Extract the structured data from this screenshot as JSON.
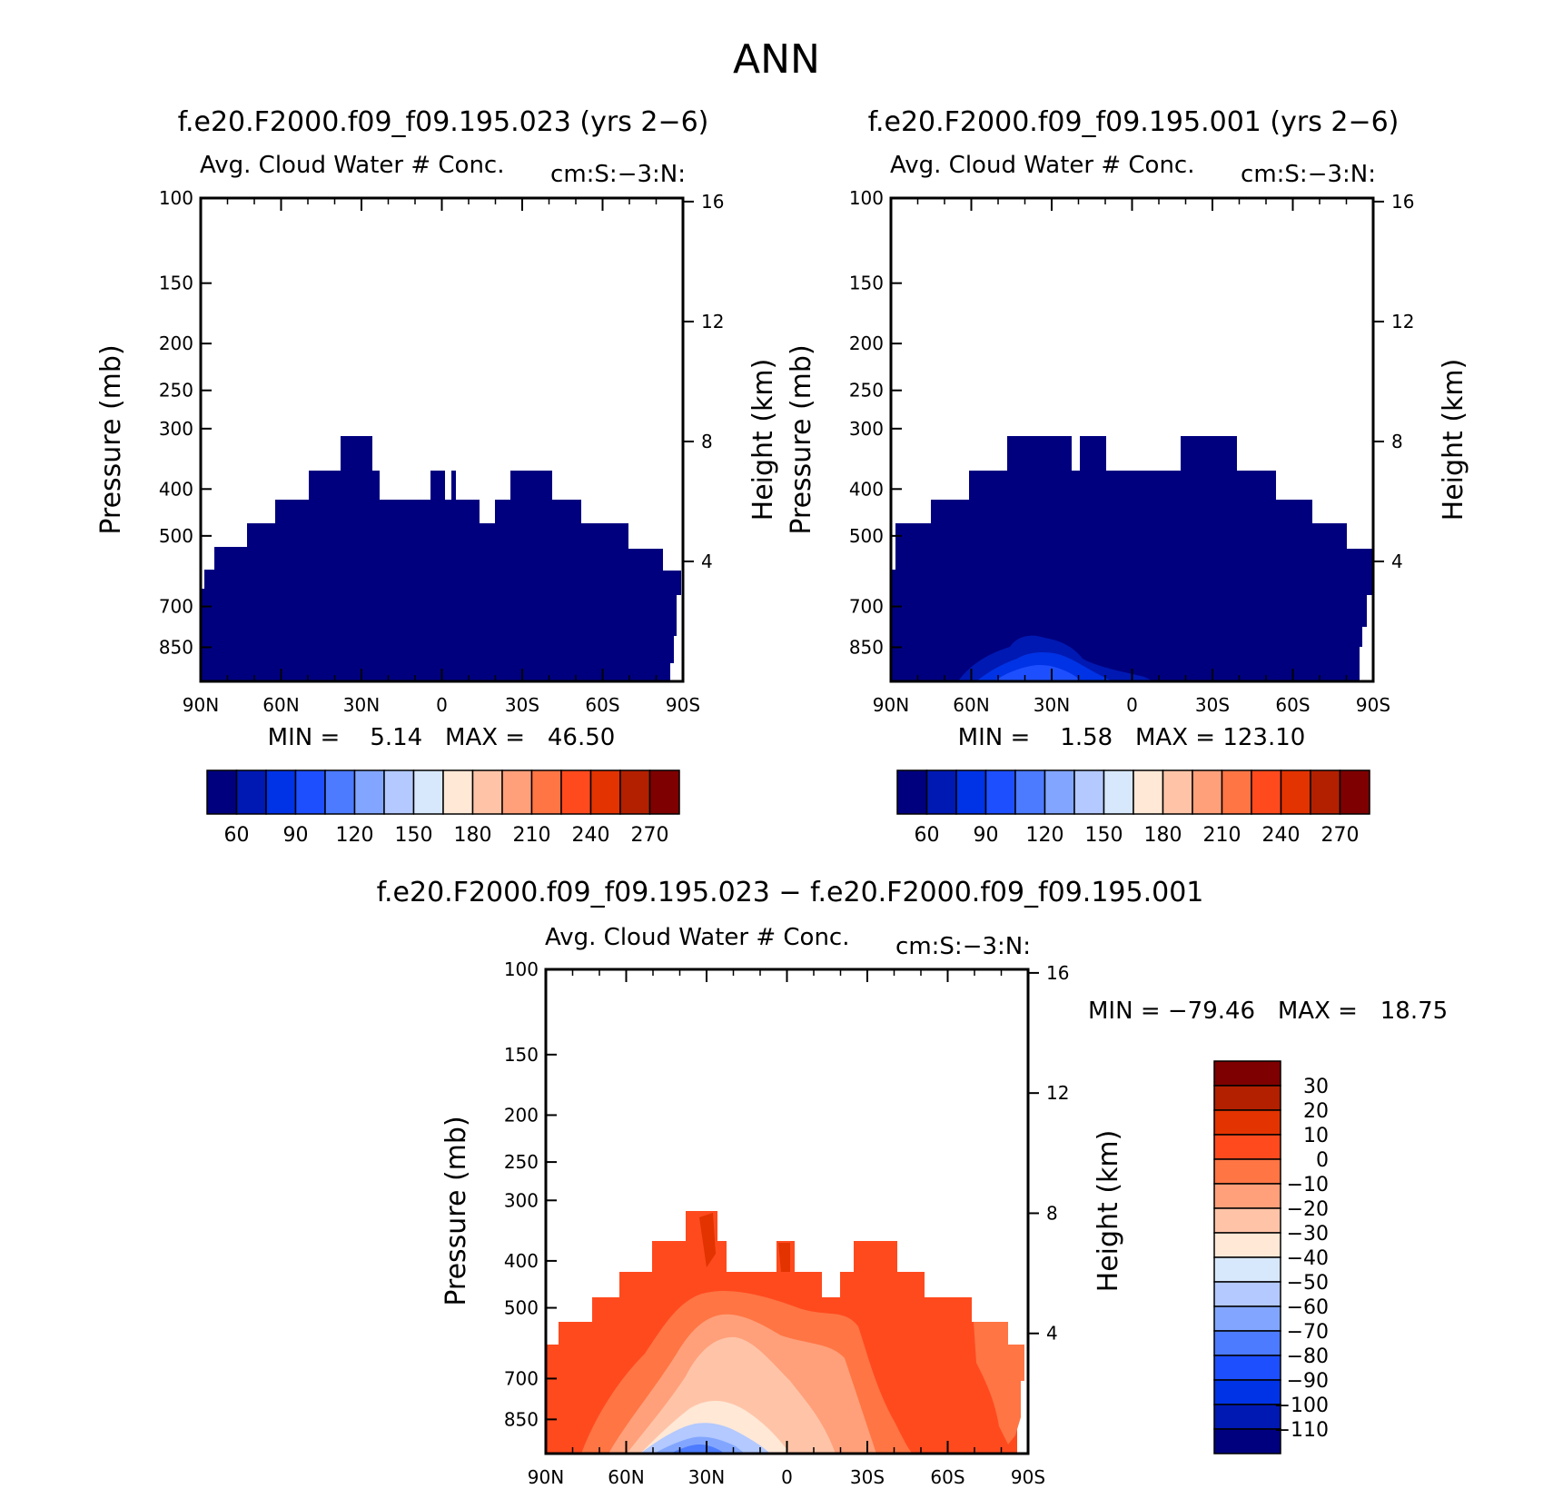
{
  "figure": {
    "title": "ANN"
  },
  "panels": {
    "p1": {
      "title": "f.e20.F2000.f09_f09.195.023 (yrs 2−6)",
      "left_label": "Avg. Cloud Water # Conc.",
      "right_label": "cm:S:−3:N:",
      "stats": "MIN =    5.14   MAX =   46.50"
    },
    "p2": {
      "title": "f.e20.F2000.f09_f09.195.001 (yrs 2−6)",
      "left_label": "Avg. Cloud Water # Conc.",
      "right_label": "cm:S:−3:N:",
      "stats": "MIN =    1.58   MAX = 123.10"
    },
    "p3": {
      "title": "f.e20.F2000.f09_f09.195.023 − f.e20.F2000.f09_f09.195.001",
      "left_label": "Avg. Cloud Water # Conc.",
      "right_label": "cm:S:−3:N:",
      "stats": "MIN = −79.46   MAX =   18.75"
    }
  },
  "chart_data": [
    {
      "type": "heatmap",
      "title": "f.e20.F2000.f09_f09.195.023 (yrs 2−6)",
      "ylabel": "Pressure (mb)",
      "y2label": "Height (km)",
      "x_ticks": [
        "90N",
        "60N",
        "30N",
        "0",
        "30S",
        "60S",
        "90S"
      ],
      "x_range": [
        90,
        -90
      ],
      "y_ticks": [
        100,
        150,
        200,
        250,
        300,
        400,
        500,
        700,
        850
      ],
      "y_range": [
        100,
        1000
      ],
      "y_scale": "log",
      "y2_ticks": [
        16,
        12,
        8,
        4
      ],
      "contour_levels": [
        "60",
        "90",
        "120",
        "150",
        "180",
        "210",
        "240",
        "270"
      ],
      "min": 5.14,
      "max": 46.5
    },
    {
      "type": "heatmap",
      "title": "f.e20.F2000.f09_f09.195.001 (yrs 2−6)",
      "ylabel": "Pressure (mb)",
      "y2label": "Height (km)",
      "x_ticks": [
        "90N",
        "60N",
        "30N",
        "0",
        "30S",
        "60S",
        "90S"
      ],
      "x_range": [
        90,
        -90
      ],
      "y_ticks": [
        100,
        150,
        200,
        250,
        300,
        400,
        500,
        700,
        850
      ],
      "y_range": [
        100,
        1000
      ],
      "y_scale": "log",
      "y2_ticks": [
        16,
        12,
        8,
        4
      ],
      "contour_levels": [
        "60",
        "90",
        "120",
        "150",
        "180",
        "210",
        "240",
        "270"
      ],
      "min": 1.58,
      "max": 123.1
    },
    {
      "type": "heatmap",
      "title": "f.e20.F2000.f09_f09.195.023 − f.e20.F2000.f09_f09.195.001",
      "ylabel": "Pressure (mb)",
      "y2label": "Height (km)",
      "x_ticks": [
        "90N",
        "60N",
        "30N",
        "0",
        "30S",
        "60S",
        "90S"
      ],
      "x_range": [
        90,
        -90
      ],
      "y_ticks": [
        100,
        150,
        200,
        250,
        300,
        400,
        500,
        700,
        850
      ],
      "y_range": [
        100,
        1000
      ],
      "y_scale": "log",
      "y2_ticks": [
        16,
        12,
        8,
        4
      ],
      "contour_levels": [
        "30",
        "20",
        "10",
        "0",
        "−10",
        "−20",
        "−30",
        "−40",
        "−50",
        "−60",
        "−70",
        "−80",
        "−90",
        "−100",
        "−110"
      ],
      "min": -79.46,
      "max": 18.75
    }
  ],
  "colorbars": {
    "horizontal_colors": [
      "#00007f",
      "#0019b2",
      "#0033e5",
      "#1e4fff",
      "#4c7bff",
      "#82a6ff",
      "#b3c9ff",
      "#d7e8fc",
      "#ffe8d6",
      "#ffc4a8",
      "#ffa07a",
      "#ff7544",
      "#ff4a1e",
      "#e23300",
      "#b22000",
      "#7f0000"
    ],
    "vertical_colors": [
      "#7f0000",
      "#b22000",
      "#e23300",
      "#ff4a1e",
      "#ff7544",
      "#ffa07a",
      "#ffc4a8",
      "#ffe8d6",
      "#d7e8fc",
      "#b3c9ff",
      "#82a6ff",
      "#4c7bff",
      "#1e4fff",
      "#0033e5",
      "#0019b2",
      "#00007f"
    ]
  }
}
